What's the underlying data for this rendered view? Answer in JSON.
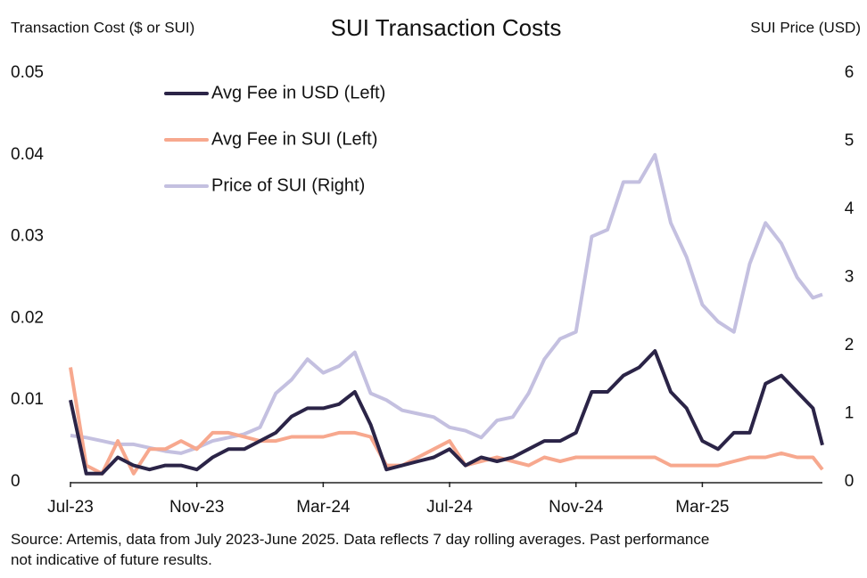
{
  "chart_data": {
    "type": "line",
    "title": "SUI Transaction Costs",
    "y_label": "Transaction Cost ($ or SUI)",
    "y2_label": "SUI Price (USD)",
    "note": "Source: Artemis, data from July 2023-June 2025. Data reflects 7 day rolling averages. Past performance not indicative of future results.",
    "x": [
      0,
      0.5,
      1,
      1.5,
      2,
      2.5,
      3,
      3.5,
      4,
      4.5,
      5,
      5.5,
      6,
      6.5,
      7,
      7.5,
      8,
      8.5,
      9,
      9.5,
      10,
      10.5,
      11,
      11.5,
      12,
      12.5,
      13,
      13.5,
      14,
      14.5,
      15,
      15.5,
      16,
      16.5,
      17,
      17.5,
      18,
      18.5,
      19,
      19.5,
      20,
      20.5,
      21,
      21.5,
      22,
      22.5,
      23,
      23.5,
      23.8
    ],
    "xlim": [
      0,
      23.8
    ],
    "xticks": [
      {
        "value": 0,
        "label": "Jul-23"
      },
      {
        "value": 4,
        "label": "Nov-23"
      },
      {
        "value": 8,
        "label": "Mar-24"
      },
      {
        "value": 12,
        "label": "Jul-24"
      },
      {
        "value": 16,
        "label": "Nov-24"
      },
      {
        "value": 20,
        "label": "Mar-25"
      }
    ],
    "ylim": [
      0,
      0.05
    ],
    "yticks": [
      0,
      0.01,
      0.02,
      0.03,
      0.04,
      0.05
    ],
    "y2lim": [
      0,
      6
    ],
    "y2ticks": [
      0,
      1,
      2,
      3,
      4,
      5,
      6
    ],
    "legend": "upper left",
    "series": [
      {
        "name": "Avg Fee in USD (Left)",
        "color": "#2b2447",
        "values": [
          0.01,
          0.001,
          0.001,
          0.003,
          0.002,
          0.0015,
          0.002,
          0.002,
          0.0015,
          0.003,
          0.004,
          0.004,
          0.005,
          0.006,
          0.008,
          0.009,
          0.009,
          0.0095,
          0.011,
          0.007,
          0.0015,
          0.002,
          0.0025,
          0.003,
          0.004,
          0.002,
          0.003,
          0.0025,
          0.003,
          0.004,
          0.005,
          0.005,
          0.006,
          0.011,
          0.011,
          0.013,
          0.014,
          0.016,
          0.011,
          0.009,
          0.005,
          0.004,
          0.006,
          0.006,
          0.012,
          0.013,
          0.011,
          0.009,
          0.0045
        ]
      },
      {
        "name": "Avg Fee in SUI (Left)",
        "color": "#f7a88e",
        "values": [
          0.014,
          0.002,
          0.001,
          0.005,
          0.001,
          0.004,
          0.004,
          0.005,
          0.004,
          0.006,
          0.006,
          0.0055,
          0.005,
          0.005,
          0.0055,
          0.0055,
          0.0055,
          0.006,
          0.006,
          0.0055,
          0.002,
          0.002,
          0.003,
          0.004,
          0.005,
          0.002,
          0.0025,
          0.003,
          0.0025,
          0.002,
          0.003,
          0.0025,
          0.003,
          0.003,
          0.003,
          0.003,
          0.003,
          0.003,
          0.002,
          0.002,
          0.002,
          0.002,
          0.0025,
          0.003,
          0.003,
          0.0035,
          0.003,
          0.003,
          0.0015
        ]
      },
      {
        "name": "Price of SUI (Right)",
        "color": "#c4c0e0",
        "axis": "y2",
        "values": [
          0.68,
          0.65,
          0.6,
          0.55,
          0.55,
          0.5,
          0.45,
          0.42,
          0.5,
          0.6,
          0.65,
          0.7,
          0.8,
          1.3,
          1.5,
          1.8,
          1.6,
          1.7,
          1.9,
          1.3,
          1.2,
          1.05,
          1.0,
          0.95,
          0.8,
          0.75,
          0.65,
          0.9,
          0.95,
          1.3,
          1.8,
          2.1,
          2.2,
          3.6,
          3.7,
          4.4,
          4.4,
          4.8,
          3.8,
          3.3,
          2.6,
          2.35,
          2.2,
          3.2,
          3.8,
          3.5,
          3.0,
          2.7,
          2.75
        ]
      }
    ]
  }
}
